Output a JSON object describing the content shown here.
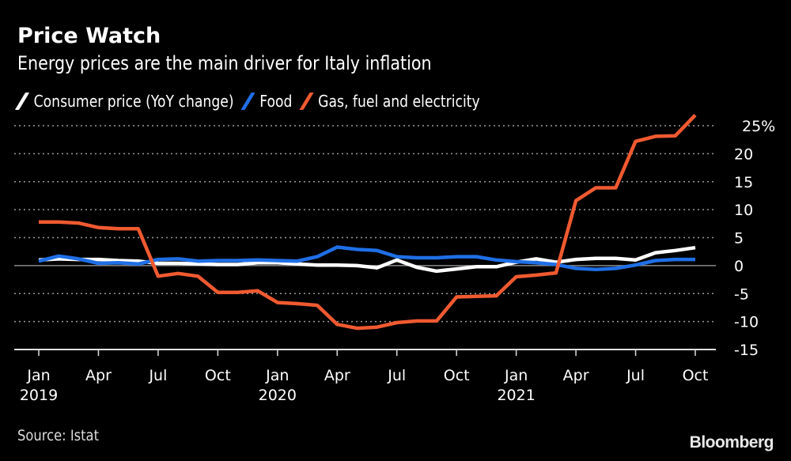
{
  "header": {
    "title": "Price Watch",
    "subtitle": "Energy prices are the main driver for Italy inflation"
  },
  "footer": {
    "source": "Source: Istat",
    "brand": "Bloomberg"
  },
  "chart_data": {
    "type": "line",
    "title": "Price Watch",
    "subtitle": "Energy prices are the main driver for Italy inflation",
    "xlabel": "",
    "ylabel": "",
    "legend_position": "top-left",
    "grid": true,
    "ylim": [
      -15,
      25
    ],
    "yticks": [
      25,
      20,
      15,
      10,
      5,
      0,
      -5,
      -10,
      -15
    ],
    "ytick_labels": [
      "25%",
      "20",
      "15",
      "10",
      "5",
      "0",
      "-5",
      "-10",
      "-15"
    ],
    "x": [
      "2019-01",
      "2019-02",
      "2019-03",
      "2019-04",
      "2019-05",
      "2019-06",
      "2019-07",
      "2019-08",
      "2019-09",
      "2019-10",
      "2019-11",
      "2019-12",
      "2020-01",
      "2020-02",
      "2020-03",
      "2020-04",
      "2020-05",
      "2020-06",
      "2020-07",
      "2020-08",
      "2020-09",
      "2020-10",
      "2020-11",
      "2020-12",
      "2021-01",
      "2021-02",
      "2021-03",
      "2021-04",
      "2021-05",
      "2021-06",
      "2021-07",
      "2021-08",
      "2021-09",
      "2021-10"
    ],
    "xticks": [
      {
        "index": 0,
        "label": "Jan",
        "year": "2019"
      },
      {
        "index": 3,
        "label": "Apr",
        "year": ""
      },
      {
        "index": 6,
        "label": "Jul",
        "year": ""
      },
      {
        "index": 9,
        "label": "Oct",
        "year": ""
      },
      {
        "index": 12,
        "label": "Jan",
        "year": "2020"
      },
      {
        "index": 15,
        "label": "Apr",
        "year": ""
      },
      {
        "index": 18,
        "label": "Jul",
        "year": ""
      },
      {
        "index": 21,
        "label": "Oct",
        "year": ""
      },
      {
        "index": 24,
        "label": "Jan",
        "year": "2021"
      },
      {
        "index": 27,
        "label": "Apr",
        "year": ""
      },
      {
        "index": 30,
        "label": "Jul",
        "year": ""
      },
      {
        "index": 33,
        "label": "Oct",
        "year": ""
      }
    ],
    "series": [
      {
        "name": "Consumer price (YoY change)",
        "color": "#ffffff",
        "values": [
          1.0,
          1.2,
          1.1,
          1.1,
          0.9,
          0.8,
          0.4,
          0.4,
          0.3,
          0.2,
          0.2,
          0.5,
          0.5,
          0.3,
          0.1,
          0.1,
          0.0,
          -0.4,
          1.0,
          -0.3,
          -1.0,
          -0.6,
          -0.2,
          -0.2,
          0.6,
          1.2,
          0.6,
          1.1,
          1.3,
          1.3,
          1.0,
          2.3,
          2.7,
          3.2
        ]
      },
      {
        "name": "Food",
        "color": "#1f6fe6",
        "values": [
          0.8,
          1.7,
          1.2,
          0.4,
          0.5,
          0.3,
          1.1,
          1.2,
          0.8,
          0.9,
          0.9,
          1.0,
          0.9,
          0.8,
          1.6,
          3.3,
          2.9,
          2.7,
          1.6,
          1.4,
          1.4,
          1.6,
          1.6,
          1.0,
          0.7,
          0.5,
          0.2,
          -0.5,
          -0.7,
          -0.5,
          0.1,
          0.9,
          1.1,
          1.1
        ]
      },
      {
        "name": "Gas, fuel and electricity",
        "color": "#f05a30",
        "values": [
          7.8,
          7.8,
          7.6,
          6.8,
          6.6,
          6.6,
          -1.9,
          -1.4,
          -1.9,
          -4.8,
          -4.8,
          -4.5,
          -6.6,
          -6.8,
          -7.1,
          -10.5,
          -11.2,
          -11.0,
          -10.2,
          -9.9,
          -9.9,
          -5.6,
          -5.5,
          -5.4,
          -2.0,
          -1.7,
          -1.3,
          11.6,
          13.9,
          13.9,
          22.2,
          23.1,
          23.2,
          26.9
        ]
      }
    ]
  }
}
